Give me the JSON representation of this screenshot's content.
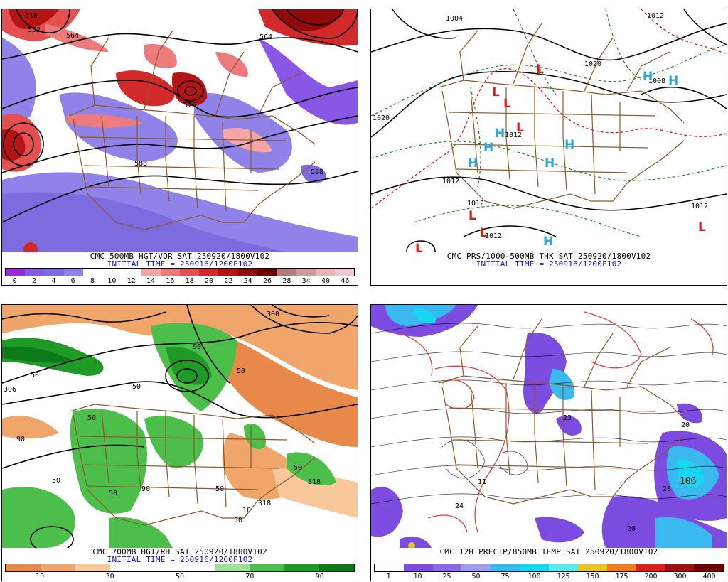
{
  "panels": [
    {
      "id": "p1",
      "caption_line1": "CMC 500MB HGT/VOR SAT 250920/1800V102",
      "caption_line2": "INITIAL TIME = 250916/1200F102",
      "contour_labels": [
        "510",
        "552",
        "564",
        "564",
        "576",
        "588",
        "588"
      ],
      "legend": {
        "colors": [
          "#9a2bd8",
          "#8a56e6",
          "#7d6be0",
          "#8f82e8",
          "#ffffff",
          "#ffffff",
          "#ffffff",
          "#f4a6a6",
          "#ee7b7b",
          "#e45050",
          "#d22a2a",
          "#b41414",
          "#8f0a0a",
          "#6a0000",
          "#b77a7a",
          "#cf9a9a",
          "#e8b4b4",
          "#f4c6d2"
        ],
        "ticks": [
          "0",
          "2",
          "4",
          "6",
          "8",
          "10",
          "12",
          "14",
          "16",
          "18",
          "20",
          "22",
          "24",
          "26",
          "28",
          "34",
          "40",
          "46"
        ]
      }
    },
    {
      "id": "p2",
      "caption_line1": "CMC PRS/1000-500MB THK SAT 250920/1800V102",
      "caption_line2": "INITIAL TIME = 250916/1200F102",
      "contour_labels": [
        "1004",
        "1012",
        "1020",
        "1020",
        "1012",
        "1012",
        "1012",
        "1012",
        "1012",
        "1008"
      ],
      "symbols_high": "H",
      "symbols_low": "L"
    },
    {
      "id": "p3",
      "caption_line1": "CMC 700MB HGT/RH SAT 250920/1800V102",
      "caption_line2": "INITIAL TIME = 250916/1200F102",
      "contour_labels": [
        "50",
        "50",
        "50",
        "50",
        "50",
        "90",
        "90",
        "90",
        "50",
        "50",
        "318",
        "318",
        "300",
        "306",
        "50",
        "10",
        "50"
      ],
      "legend": {
        "colors": [
          "#e8894a",
          "#f0a66a",
          "#f8c89a",
          "#ffffff",
          "#ffffff",
          "#ffffff",
          "#9ee09a",
          "#4cbf4a",
          "#1f9a26",
          "#0c7a16"
        ],
        "ticks": [
          "10",
          "30",
          "50",
          "70",
          "90"
        ]
      }
    },
    {
      "id": "p4",
      "caption_line1": "CMC 12H PRECIP/850MB TEMP SAT 250920/1800V102",
      "caption_line2": "",
      "contour_labels": [
        "20",
        "28",
        "106",
        "24",
        "11",
        "23",
        "20"
      ],
      "legend": {
        "colors": [
          "#ffffff",
          "#7c4be0",
          "#8a6ae8",
          "#9aa0ef",
          "#3ab8f0",
          "#16d6f2",
          "#5ee8f0",
          "#e8c22a",
          "#f07a1e",
          "#d82020",
          "#a01010",
          "#700000"
        ],
        "ticks": [
          "1",
          "10",
          "25",
          "50",
          "75",
          "100",
          "125",
          "150",
          "175",
          "200",
          "300",
          "400"
        ]
      }
    }
  ]
}
